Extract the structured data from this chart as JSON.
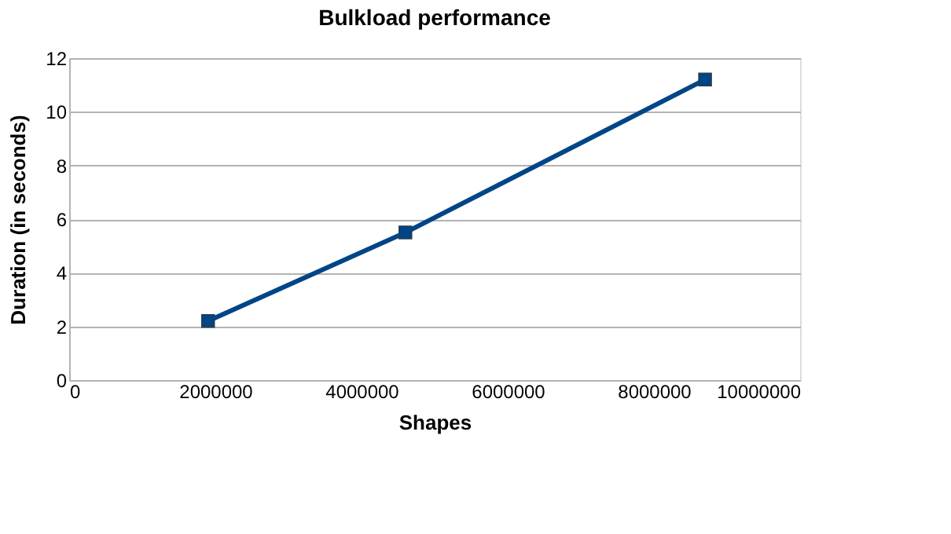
{
  "chart_data": {
    "type": "line",
    "title": "Bulkload performance",
    "xlabel": "Shapes",
    "ylabel": "Duration (in seconds)",
    "x": [
      1900000,
      4600000,
      8700000
    ],
    "series": [
      {
        "color": "#004586",
        "values": [
          2.2,
          5.5,
          11.2
        ]
      }
    ],
    "xlim": [
      0,
      10000000
    ],
    "xticks": [
      0,
      2000000,
      4000000,
      6000000,
      8000000,
      10000000
    ],
    "ylim": [
      0,
      12
    ],
    "yticks": [
      0,
      2,
      4,
      6,
      8,
      10,
      12
    ],
    "grid": "y",
    "marker": "square",
    "line_style": "solid"
  }
}
